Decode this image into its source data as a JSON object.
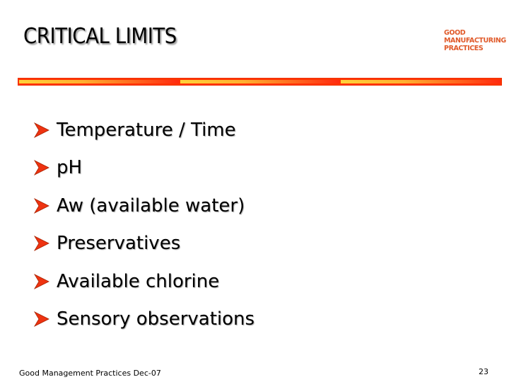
{
  "slide": {
    "title": "CRITICAL LIMITS",
    "logo_lines": [
      "GOOD",
      "MANUFACTURING",
      "PRACTICES"
    ],
    "bullet_icon": "arrowhead-right-icon",
    "bullets": [
      "Temperature / Time",
      "pH",
      "Aw (available water)",
      "Preservatives",
      "Available chlorine",
      "Sensory observations"
    ],
    "footer": "Good Management Practices Dec-07",
    "page_number": "23"
  },
  "colors": {
    "accent": "#ff3300",
    "logo": "#e05a2a",
    "bar_start": "#ffd23a"
  }
}
